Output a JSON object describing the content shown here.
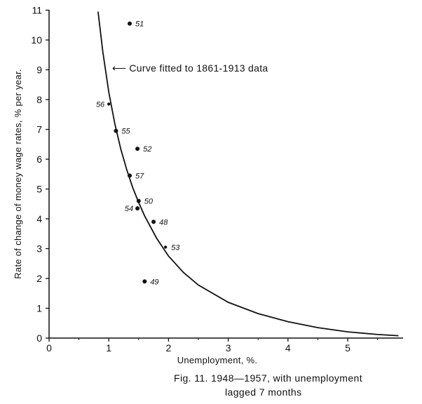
{
  "chart_data": {
    "type": "scatter",
    "title": "",
    "xlabel": "Unemployment,   %.",
    "ylabel": "Rate of change of money wage rates, % per year.",
    "xlim": [
      0,
      6
    ],
    "ylim": [
      0,
      11
    ],
    "x_ticks": [
      "0",
      "1",
      "2",
      "3",
      "4",
      "5"
    ],
    "y_ticks": [
      "0",
      "1",
      "2",
      "3",
      "4",
      "5",
      "6",
      "7",
      "8",
      "9",
      "10",
      "11"
    ],
    "grid": false,
    "points": [
      {
        "label": "51",
        "x": 1.35,
        "y": 10.55
      },
      {
        "label": "56",
        "x": 1.0,
        "y": 7.85
      },
      {
        "label": "55",
        "x": 1.12,
        "y": 6.95
      },
      {
        "label": "52",
        "x": 1.48,
        "y": 6.35
      },
      {
        "label": "57",
        "x": 1.35,
        "y": 5.45
      },
      {
        "label": "50",
        "x": 1.5,
        "y": 4.6
      },
      {
        "label": "54",
        "x": 1.48,
        "y": 4.35
      },
      {
        "label": "48",
        "x": 1.75,
        "y": 3.9
      },
      {
        "label": "53",
        "x": 1.95,
        "y": 3.05
      },
      {
        "label": "49",
        "x": 1.6,
        "y": 1.9
      }
    ],
    "curve": {
      "label": "Curve fitted to 1861-1913 data",
      "points": [
        {
          "x": 0.82,
          "y": 10.95
        },
        {
          "x": 0.9,
          "y": 9.6
        },
        {
          "x": 1.0,
          "y": 8.25
        },
        {
          "x": 1.1,
          "y": 7.2
        },
        {
          "x": 1.2,
          "y": 6.35
        },
        {
          "x": 1.3,
          "y": 5.65
        },
        {
          "x": 1.4,
          "y": 5.05
        },
        {
          "x": 1.5,
          "y": 4.55
        },
        {
          "x": 1.6,
          "y": 4.1
        },
        {
          "x": 1.8,
          "y": 3.35
        },
        {
          "x": 2.0,
          "y": 2.75
        },
        {
          "x": 2.25,
          "y": 2.2
        },
        {
          "x": 2.5,
          "y": 1.78
        },
        {
          "x": 3.0,
          "y": 1.2
        },
        {
          "x": 3.5,
          "y": 0.82
        },
        {
          "x": 4.0,
          "y": 0.55
        },
        {
          "x": 4.5,
          "y": 0.35
        },
        {
          "x": 5.0,
          "y": 0.21
        },
        {
          "x": 5.5,
          "y": 0.12
        },
        {
          "x": 5.85,
          "y": 0.08
        }
      ]
    }
  },
  "annotation": {
    "arrow": "⟵",
    "text": "Curve fitted to 1861-1913 data"
  },
  "caption": {
    "line1": "Fig. 11.   1948—1957, with unemployment",
    "line2": "lagged  7  months"
  }
}
